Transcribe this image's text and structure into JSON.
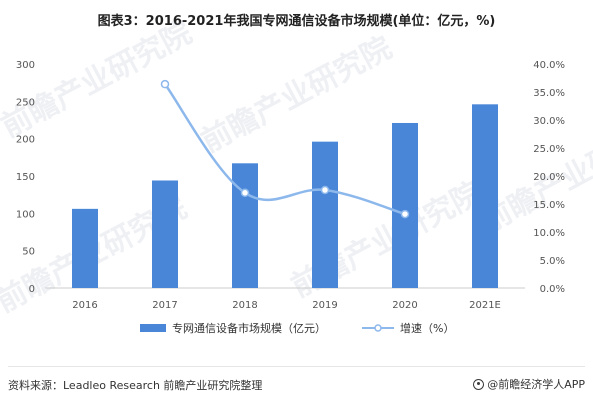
{
  "title": "图表3：2016-2021年我国专网通信设备市场规模(单位：亿元，%)",
  "source": "资料来源：Leadleo Research 前瞻产业研究院整理",
  "brand": "@前瞻经济学人APP",
  "watermark": "前瞻产业研究院",
  "colors": {
    "bar": "#4a86d8",
    "line": "#8db8ec",
    "axis_text": "#555555",
    "axis_line": "#cccccc"
  },
  "chart_data": {
    "type": "bar",
    "title": "图表3：2016-2021年我国专网通信设备市场规模(单位：亿元，%)",
    "categories": [
      "2016",
      "2017",
      "2018",
      "2019",
      "2020",
      "2021E"
    ],
    "series": [
      {
        "name": "专网通信设备市场规模（亿元）",
        "type": "bar",
        "axis": "left",
        "values": [
          106,
          144,
          167,
          196,
          221,
          246
        ]
      },
      {
        "name": "增速（%）",
        "type": "line",
        "axis": "right",
        "values": [
          null,
          36.4,
          17.0,
          17.5,
          13.2,
          null
        ]
      }
    ],
    "yleft": {
      "lim": [
        0,
        300
      ],
      "ticks": [
        "0",
        "50",
        "100",
        "150",
        "200",
        "250",
        "300"
      ]
    },
    "yright": {
      "lim": [
        0,
        40
      ],
      "ticks": [
        "0.0%",
        "5.0%",
        "10.0%",
        "15.0%",
        "20.0%",
        "25.0%",
        "30.0%",
        "35.0%",
        "40.0%"
      ]
    },
    "legend": "bottom",
    "grid": false
  }
}
